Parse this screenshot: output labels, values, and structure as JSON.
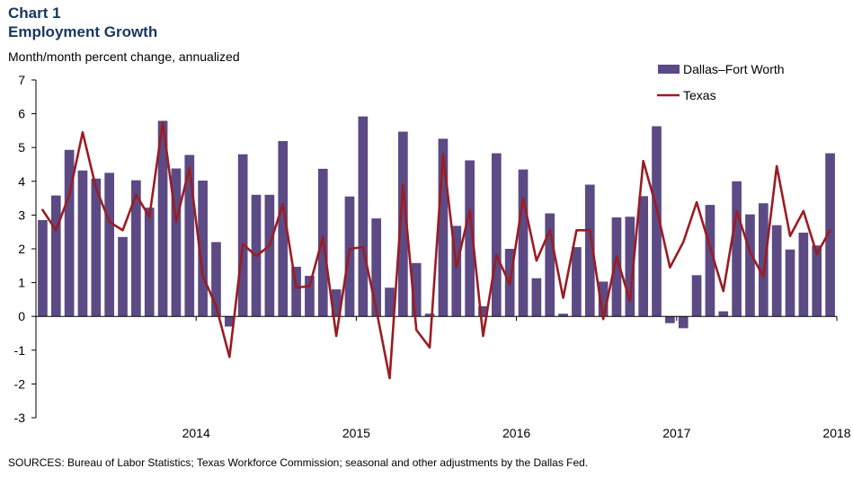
{
  "header": {
    "chart_number": "Chart 1",
    "title": "Employment Growth",
    "subtitle": "Month/month  percent change, annualized"
  },
  "footer": {
    "sources": "SOURCES: Bureau of  Labor Statistics; Texas Workforce Commission; seasonal and other adjustments by the Dallas Fed."
  },
  "colors": {
    "bar": "#5b4a84",
    "line": "#9b1c23",
    "title": "#17375e"
  },
  "chart_data": {
    "type": "bar",
    "title": "Employment Growth",
    "ylabel": "Month/month  percent change, annualized",
    "ylim": [
      -3,
      7
    ],
    "yticks": [
      "7",
      "6",
      "5",
      "4",
      "3",
      "2",
      "1",
      "0",
      "-1",
      "-2",
      "-3"
    ],
    "x_tick_labels": [
      "2014",
      "2015",
      "2016",
      "2017",
      "2018"
    ],
    "x_start": "2013-07",
    "legend_position": "top-right",
    "grid": false,
    "series": [
      {
        "name": "Dallas–Fort Worth",
        "type": "bar",
        "values": [
          2.85,
          3.58,
          4.93,
          4.32,
          4.08,
          4.25,
          2.35,
          4.03,
          3.22,
          5.79,
          4.38,
          4.78,
          4.02,
          2.2,
          -0.3,
          4.8,
          3.6,
          3.6,
          5.19,
          1.47,
          1.2,
          4.37,
          0.8,
          3.55,
          5.92,
          2.9,
          0.85,
          5.47,
          1.58,
          0.08,
          5.26,
          2.68,
          4.62,
          0.3,
          4.83,
          2.0,
          4.35,
          1.13,
          3.05,
          0.08,
          2.05,
          3.9,
          1.03,
          2.93,
          2.95,
          3.56,
          5.63,
          -0.2,
          -0.35,
          1.22,
          3.3,
          0.15,
          4.0,
          3.02,
          3.35,
          2.7,
          1.98,
          2.48,
          2.1,
          4.83
        ]
      },
      {
        "name": "Texas",
        "type": "line",
        "values": [
          3.15,
          2.55,
          3.6,
          5.45,
          3.8,
          2.8,
          2.55,
          3.6,
          2.95,
          5.75,
          2.8,
          4.4,
          1.2,
          0.3,
          -1.2,
          2.15,
          1.78,
          2.1,
          3.32,
          0.85,
          0.9,
          2.35,
          -0.58,
          2.0,
          2.05,
          0.2,
          -1.83,
          3.9,
          -0.4,
          -0.92,
          4.8,
          1.45,
          3.15,
          -0.58,
          1.82,
          0.95,
          3.5,
          1.65,
          2.55,
          0.55,
          2.55,
          2.55,
          -0.08,
          1.78,
          0.45,
          4.6,
          3.2,
          1.45,
          2.2,
          3.38,
          2.05,
          0.75,
          3.12,
          1.9,
          1.18,
          4.45,
          2.38,
          3.12,
          1.85,
          2.55
        ]
      }
    ]
  }
}
